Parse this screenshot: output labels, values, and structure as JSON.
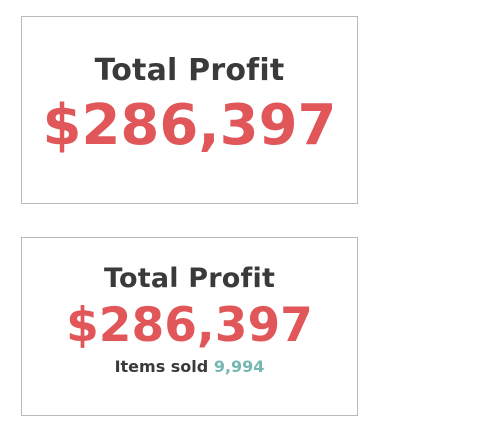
{
  "cards": [
    {
      "title": "Total Profit",
      "value": "$286,397"
    },
    {
      "title": "Total Profit",
      "value": "$286,397",
      "sub_label": "Items sold",
      "sub_value": "9,994"
    }
  ],
  "colors": {
    "title": "#3a3a3a",
    "value": "#e15759",
    "secondary_value": "#76b7b2",
    "border": "#b9b9b9"
  }
}
